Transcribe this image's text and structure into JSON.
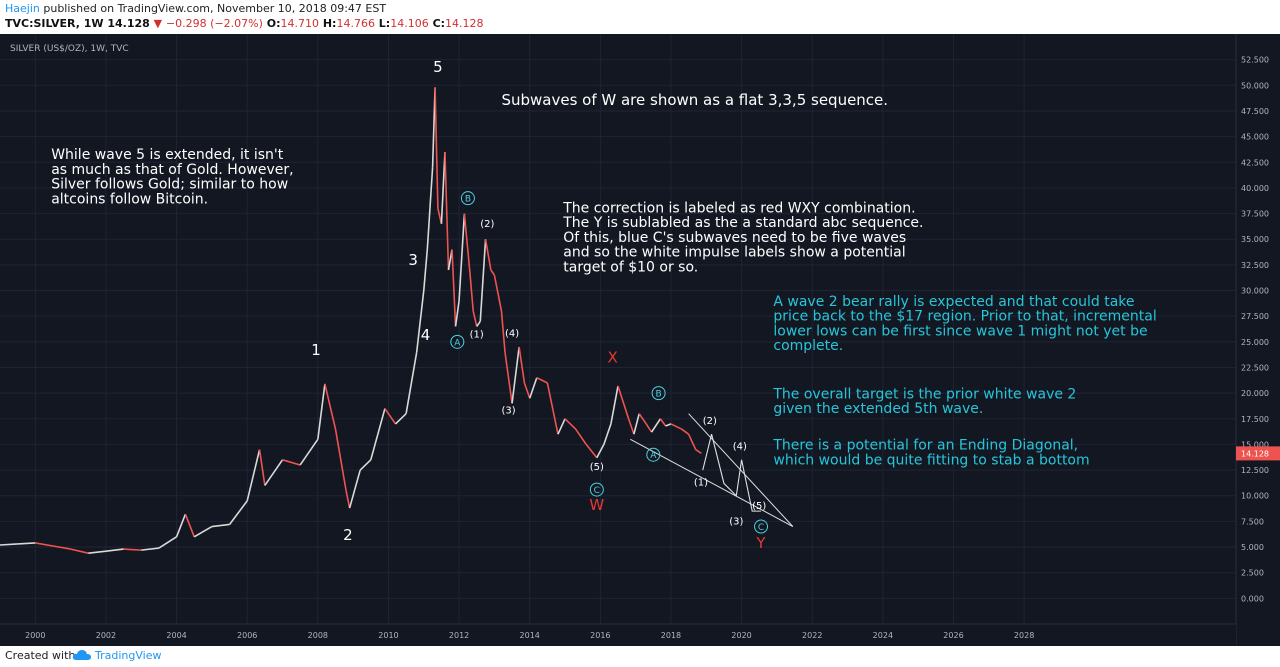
{
  "header": {
    "author": "Haejin",
    "published": "published on TradingView.com, November 10, 2018 09:47 EST",
    "symbol": "TVC:SILVER, 1W",
    "last": "14.128",
    "change": "−0.298 (−2.07%)",
    "open_label": "O:",
    "open": "14.710",
    "high_label": "H:",
    "high": "14.766",
    "low_label": "L:",
    "low": "14.106",
    "close_label": "C:",
    "close": "14.128"
  },
  "footer": {
    "created_with": "Created with",
    "brand": "TradingView"
  },
  "colors": {
    "background": "#131722",
    "grid": "#1f2433",
    "candle_up": "#d9d9d9",
    "candle_down": "#ef5350",
    "white_label": "#ffffff",
    "red_label": "#e53935",
    "cyan_label": "#4dd0e1",
    "cyan_text": "#26c6da",
    "price_badge": "#ef5350"
  },
  "chart_data": {
    "type": "line",
    "title": "SILVER (US$/OZ), 1W, TVC",
    "xlabel": "",
    "ylabel": "",
    "xlim": [
      1999.0,
      2034.0
    ],
    "ylim": [
      -2.5,
      55.0
    ],
    "x_ticks": [
      "2000",
      "2002",
      "2004",
      "2006",
      "2008",
      "2010",
      "2012",
      "2014",
      "2016",
      "2018",
      "2020",
      "2022",
      "2024",
      "2026",
      "2028"
    ],
    "y_ticks": [
      "52.500",
      "50.000",
      "47.500",
      "45.000",
      "42.500",
      "40.000",
      "37.500",
      "35.000",
      "32.500",
      "30.000",
      "27.500",
      "25.000",
      "22.500",
      "20.000",
      "17.500",
      "15.000",
      "12.500",
      "10.000",
      "7.500",
      "5.000",
      "2.500",
      "0.000"
    ],
    "current_price": "14.128",
    "series": [
      {
        "values": [
          [
            1999.0,
            5.2
          ],
          [
            1999.5,
            5.3
          ],
          [
            2000.0,
            5.4
          ],
          [
            2000.5,
            5.1
          ],
          [
            2001.0,
            4.8
          ],
          [
            2001.5,
            4.4
          ],
          [
            2002.0,
            4.6
          ],
          [
            2002.5,
            4.8
          ],
          [
            2003.0,
            4.7
          ],
          [
            2003.5,
            4.9
          ],
          [
            2004.0,
            6.0
          ],
          [
            2004.25,
            8.2
          ],
          [
            2004.5,
            6.0
          ],
          [
            2005.0,
            7.0
          ],
          [
            2005.5,
            7.2
          ],
          [
            2006.0,
            9.5
          ],
          [
            2006.35,
            14.5
          ],
          [
            2006.5,
            11.0
          ],
          [
            2007.0,
            13.5
          ],
          [
            2007.5,
            13.0
          ],
          [
            2008.0,
            15.5
          ],
          [
            2008.2,
            20.9
          ],
          [
            2008.5,
            16.5
          ],
          [
            2008.8,
            10.5
          ],
          [
            2008.9,
            8.8
          ],
          [
            2009.2,
            12.5
          ],
          [
            2009.5,
            13.5
          ],
          [
            2009.9,
            18.5
          ],
          [
            2010.2,
            17.0
          ],
          [
            2010.5,
            18.0
          ],
          [
            2010.8,
            24.0
          ],
          [
            2011.0,
            30.0
          ],
          [
            2011.1,
            34.0
          ],
          [
            2011.25,
            42.0
          ],
          [
            2011.32,
            49.8
          ],
          [
            2011.4,
            38.0
          ],
          [
            2011.5,
            36.5
          ],
          [
            2011.6,
            43.5
          ],
          [
            2011.7,
            32.0
          ],
          [
            2011.8,
            34.0
          ],
          [
            2011.9,
            26.5
          ],
          [
            2012.0,
            29.0
          ],
          [
            2012.15,
            37.5
          ],
          [
            2012.3,
            32.0
          ],
          [
            2012.4,
            28.0
          ],
          [
            2012.5,
            26.5
          ],
          [
            2012.6,
            27.0
          ],
          [
            2012.75,
            35.0
          ],
          [
            2012.9,
            32.0
          ],
          [
            2013.0,
            31.5
          ],
          [
            2013.2,
            28.0
          ],
          [
            2013.3,
            24.0
          ],
          [
            2013.5,
            19.0
          ],
          [
            2013.7,
            24.5
          ],
          [
            2013.85,
            21.0
          ],
          [
            2014.0,
            19.5
          ],
          [
            2014.2,
            21.5
          ],
          [
            2014.5,
            21.0
          ],
          [
            2014.8,
            16.0
          ],
          [
            2015.0,
            17.5
          ],
          [
            2015.3,
            16.5
          ],
          [
            2015.6,
            15.0
          ],
          [
            2015.9,
            13.7
          ],
          [
            2016.1,
            15.0
          ],
          [
            2016.3,
            17.0
          ],
          [
            2016.5,
            20.7
          ],
          [
            2016.8,
            17.5
          ],
          [
            2016.95,
            16.0
          ],
          [
            2017.1,
            18.0
          ],
          [
            2017.3,
            17.0
          ],
          [
            2017.45,
            16.2
          ],
          [
            2017.7,
            17.5
          ],
          [
            2017.85,
            16.8
          ],
          [
            2018.0,
            17.0
          ],
          [
            2018.3,
            16.5
          ],
          [
            2018.5,
            16.0
          ],
          [
            2018.7,
            14.5
          ],
          [
            2018.86,
            14.13
          ]
        ]
      }
    ],
    "annotations": [
      {
        "text": "5",
        "x": 2011.4,
        "y": 51.3,
        "color": "white",
        "size": 15
      },
      {
        "text": "3",
        "x": 2010.7,
        "y": 32.5,
        "color": "white",
        "size": 15
      },
      {
        "text": "4",
        "x": 2011.05,
        "y": 25.2,
        "color": "white",
        "size": 15
      },
      {
        "text": "1",
        "x": 2007.95,
        "y": 23.7,
        "color": "white",
        "size": 15
      },
      {
        "text": "2",
        "x": 2008.85,
        "y": 5.7,
        "color": "white",
        "size": 15
      },
      {
        "text": "(1)",
        "x": 2012.5,
        "y": 25.4,
        "color": "white",
        "size": 10
      },
      {
        "text": "(2)",
        "x": 2012.8,
        "y": 36.2,
        "color": "white",
        "size": 10
      },
      {
        "text": "(3)",
        "x": 2013.4,
        "y": 18.0,
        "color": "white",
        "size": 10
      },
      {
        "text": "(4)",
        "x": 2013.5,
        "y": 25.5,
        "color": "white",
        "size": 10
      },
      {
        "text": "(5)",
        "x": 2015.9,
        "y": 12.5,
        "color": "white",
        "size": 10
      },
      {
        "text": "(1)",
        "x": 2018.85,
        "y": 11.0,
        "color": "white",
        "size": 10
      },
      {
        "text": "(2)",
        "x": 2019.1,
        "y": 17.0,
        "color": "white",
        "size": 10
      },
      {
        "text": "(3)",
        "x": 2019.85,
        "y": 7.2,
        "color": "white",
        "size": 10
      },
      {
        "text": "(4)",
        "x": 2019.95,
        "y": 14.5,
        "color": "white",
        "size": 10
      },
      {
        "text": "(5)",
        "x": 2020.5,
        "y": 8.7,
        "color": "white",
        "size": 10
      },
      {
        "text": "X",
        "x": 2016.35,
        "y": 23.0,
        "color": "red",
        "size": 15
      },
      {
        "text": "W",
        "x": 2015.9,
        "y": 8.6,
        "color": "red",
        "size": 15
      },
      {
        "text": "Y",
        "x": 2020.55,
        "y": 4.9,
        "color": "red",
        "size": 15
      }
    ],
    "circle_labels": [
      {
        "text": "A",
        "x": 2011.95,
        "y": 25.0
      },
      {
        "text": "B",
        "x": 2012.25,
        "y": 39.0
      },
      {
        "text": "C",
        "x": 2015.9,
        "y": 10.6
      },
      {
        "text": "A",
        "x": 2017.5,
        "y": 14.0
      },
      {
        "text": "B",
        "x": 2017.65,
        "y": 20.0
      },
      {
        "text": "C",
        "x": 2020.55,
        "y": 7.0
      }
    ],
    "notes": [
      {
        "text": "Subwaves of W are shown as a flat 3,3,5 sequence.",
        "x": 2013.2,
        "y": 48.1,
        "color": "white",
        "size": 15
      },
      {
        "lines": [
          "While wave 5 is extended, it isn't",
          "as much as that of Gold. However,",
          "Silver follows Gold; similar to how",
          "altcoins follow Bitcoin."
        ],
        "x": 2000.45,
        "y": 42.8,
        "color": "white",
        "size": 14
      },
      {
        "lines": [
          "The correction is labeled as red WXY combination.",
          "The Y is sublabled as the a standard abc sequence.",
          "Of this, blue C's subwaves need to be five waves",
          "and so the white impulse labels show a potential",
          "target of $10 or so."
        ],
        "x": 2014.95,
        "y": 37.6,
        "color": "white",
        "size": 14
      },
      {
        "lines": [
          "A wave 2 bear rally is expected and that could take",
          "price back to the $17 region. Prior to that, incremental",
          "lower lows can be first since wave 1 might not yet be",
          "complete."
        ],
        "x": 2020.9,
        "y": 28.5,
        "color": "cyan",
        "size": 14
      },
      {
        "lines": [
          "The overall target is the prior white wave 2",
          "given the extended 5th wave."
        ],
        "x": 2020.9,
        "y": 19.5,
        "color": "cyan",
        "size": 14
      },
      {
        "lines": [
          "There is a potential for an Ending Diagonal,",
          "which would be quite fitting to stab a bottom"
        ],
        "x": 2020.9,
        "y": 14.5,
        "color": "cyan",
        "size": 14
      }
    ],
    "diagonal_lines": [
      [
        [
          2018.5,
          18.0
        ],
        [
          2021.45,
          7.0
        ]
      ],
      [
        [
          2016.85,
          15.5
        ],
        [
          2021.45,
          7.0
        ]
      ]
    ],
    "projection_path": [
      [
        2018.9,
        12.5
      ],
      [
        2019.15,
        16.0
      ],
      [
        2019.5,
        11.2
      ],
      [
        2019.85,
        10.0
      ],
      [
        2020.0,
        13.5
      ],
      [
        2020.3,
        8.5
      ],
      [
        2020.55,
        8.5
      ]
    ]
  }
}
